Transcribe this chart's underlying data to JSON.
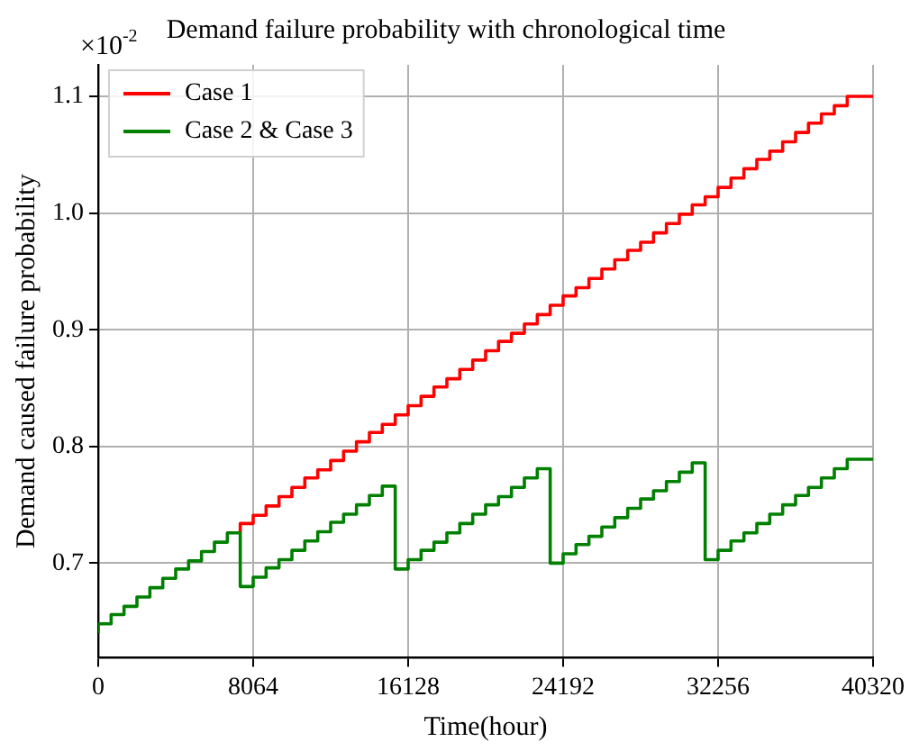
{
  "chart_data": {
    "type": "step",
    "title": "Demand failure probability with chronological time",
    "xlabel": "Time(hour)",
    "ylabel": "Demand caused failure probability",
    "annotations": [
      "×10$^{-2}$"
    ],
    "x": [
      0,
      672,
      1344,
      2016,
      2688,
      3360,
      4032,
      4704,
      5376,
      6048,
      6720,
      7392,
      8064,
      8736,
      9408,
      10080,
      10752,
      11424,
      12096,
      12768,
      13440,
      14112,
      14784,
      15456,
      16128,
      16800,
      17472,
      18144,
      18816,
      19488,
      20160,
      20832,
      21504,
      22176,
      22848,
      23520,
      24192,
      24864,
      25536,
      26208,
      26880,
      27552,
      28224,
      28896,
      29568,
      30240,
      30912,
      31584,
      32256,
      32928,
      33600,
      34272,
      34944,
      35616,
      36288,
      36960,
      37632,
      38304,
      38976,
      39648,
      40320
    ],
    "series": [
      {
        "name": "Case 1",
        "color": "#ff0000",
        "values": [
          null,
          null,
          null,
          null,
          null,
          null,
          null,
          null,
          null,
          null,
          null,
          0.726,
          0.734,
          0.741,
          0.749,
          0.757,
          0.765,
          0.773,
          0.78,
          0.788,
          0.796,
          0.804,
          0.812,
          0.819,
          0.827,
          0.835,
          0.843,
          0.851,
          0.858,
          0.866,
          0.874,
          0.882,
          0.89,
          0.897,
          0.905,
          0.913,
          0.921,
          0.929,
          0.936,
          0.944,
          0.952,
          0.96,
          0.968,
          0.975,
          0.983,
          0.991,
          0.999,
          1.007,
          1.014,
          1.022,
          1.03,
          1.038,
          1.046,
          1.053,
          1.061,
          1.069,
          1.077,
          1.085,
          1.092,
          1.1,
          1.1
        ]
      },
      {
        "name": "Case 2 & Case 3",
        "color": "#008000",
        "values": [
          0.64,
          0.648,
          0.656,
          0.663,
          0.671,
          0.679,
          0.687,
          0.695,
          0.702,
          0.71,
          0.718,
          0.726,
          0.68,
          0.688,
          0.696,
          0.703,
          0.711,
          0.719,
          0.727,
          0.735,
          0.742,
          0.75,
          0.758,
          0.766,
          0.695,
          0.703,
          0.711,
          0.718,
          0.726,
          0.734,
          0.742,
          0.75,
          0.757,
          0.765,
          0.773,
          0.781,
          0.7,
          0.708,
          0.716,
          0.723,
          0.731,
          0.739,
          0.747,
          0.755,
          0.762,
          0.77,
          0.778,
          0.786,
          0.703,
          0.711,
          0.719,
          0.726,
          0.734,
          0.742,
          0.75,
          0.758,
          0.765,
          0.773,
          0.781,
          0.789,
          0.789
        ]
      }
    ],
    "xlim": [
      0,
      40320
    ],
    "xticks": [
      0,
      8064,
      16128,
      24192,
      32256,
      40320
    ],
    "ylim": [
      0.619,
      1.127
    ],
    "yticks": [
      0.7,
      0.8,
      0.9,
      {
        "value": 1.0,
        "label": "1.0"
      },
      1.1
    ],
    "grid": true,
    "legend": "top left",
    "marker": "none",
    "line_style": "solid"
  }
}
